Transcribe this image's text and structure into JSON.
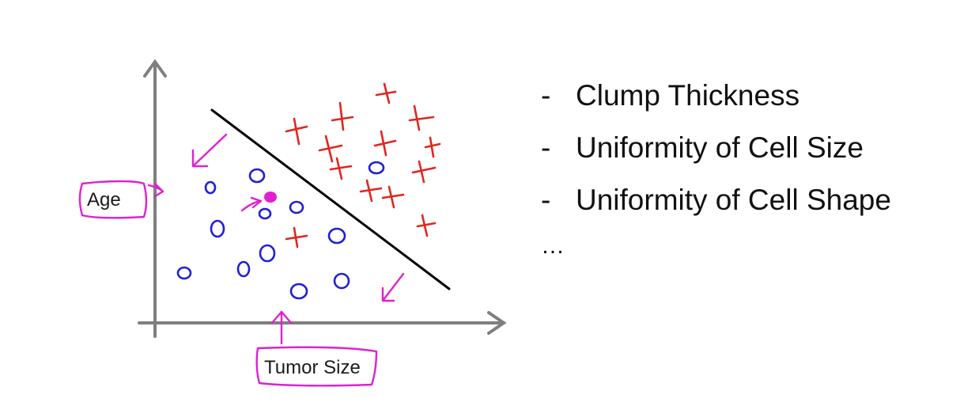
{
  "diagram": {
    "x_axis_label": "Tumor Size",
    "y_axis_label": "Age",
    "colors": {
      "axis": "#7f7f7f",
      "benign": "#1f1fd6",
      "malignant": "#e0261f",
      "annotation": "#e020d0",
      "boundary": "#000000",
      "query_point": "#e020d0"
    }
  },
  "features": {
    "dash": "-",
    "items": [
      "Clump Thickness",
      "Uniformity of Cell Size",
      "Uniformity of Cell Shape"
    ],
    "ellipsis": "…"
  }
}
